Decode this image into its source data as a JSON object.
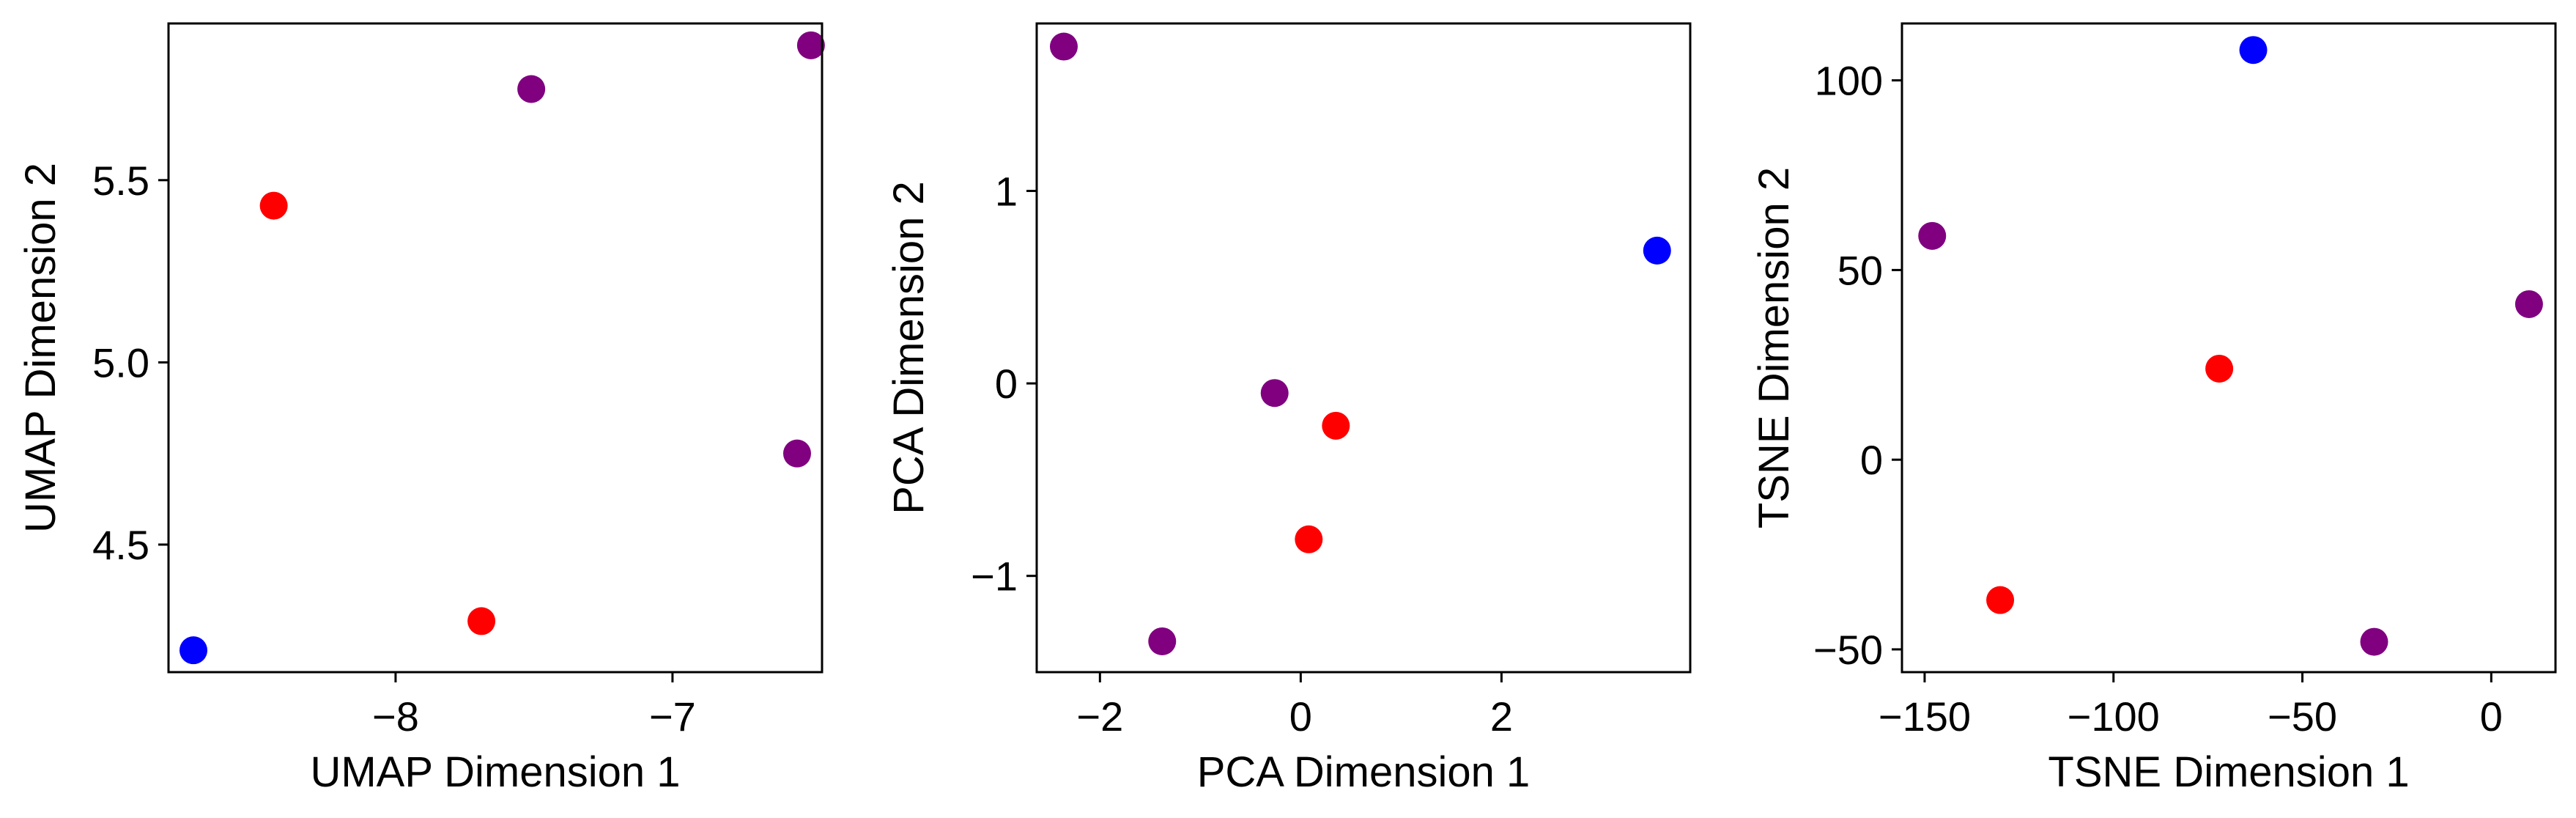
{
  "chart_data": [
    {
      "type": "scatter",
      "title": "",
      "xlabel": "UMAP Dimension 1",
      "ylabel": "UMAP Dimension 2",
      "xlim": [
        -8.82,
        -6.46
      ],
      "ylim": [
        4.15,
        5.93
      ],
      "xticks": [
        -8,
        -7
      ],
      "yticks": [
        4.5,
        5.0,
        5.5
      ],
      "xtick_labels": [
        "−8",
        "−7"
      ],
      "ytick_labels": [
        "4.5",
        "5.0",
        "5.5"
      ],
      "grid": false,
      "points": [
        {
          "x": -8.73,
          "y": 4.21,
          "color": "#0000ff"
        },
        {
          "x": -8.44,
          "y": 5.43,
          "color": "#ff0000"
        },
        {
          "x": -7.69,
          "y": 4.29,
          "color": "#ff0000"
        },
        {
          "x": -7.51,
          "y": 5.75,
          "color": "#800080"
        },
        {
          "x": -6.55,
          "y": 4.75,
          "color": "#800080"
        },
        {
          "x": -6.5,
          "y": 5.87,
          "color": "#800080"
        }
      ]
    },
    {
      "type": "scatter",
      "title": "",
      "xlabel": "PCA Dimension 1",
      "ylabel": "PCA Dimension 2",
      "xlim": [
        -2.63,
        3.88
      ],
      "ylim": [
        -1.5,
        1.87
      ],
      "xticks": [
        -2,
        0,
        2
      ],
      "yticks": [
        -1,
        0,
        1
      ],
      "xtick_labels": [
        "−2",
        "0",
        "2"
      ],
      "ytick_labels": [
        "−1",
        "0",
        "1"
      ],
      "grid": false,
      "points": [
        {
          "x": -2.36,
          "y": 1.75,
          "color": "#800080"
        },
        {
          "x": -1.38,
          "y": -1.34,
          "color": "#800080"
        },
        {
          "x": -0.26,
          "y": -0.05,
          "color": "#800080"
        },
        {
          "x": 0.35,
          "y": -0.22,
          "color": "#ff0000"
        },
        {
          "x": 0.08,
          "y": -0.81,
          "color": "#ff0000"
        },
        {
          "x": 3.55,
          "y": 0.69,
          "color": "#0000ff"
        }
      ]
    },
    {
      "type": "scatter",
      "title": "",
      "xlabel": "TSNE Dimension 1",
      "ylabel": "TSNE Dimension 2",
      "xlim": [
        -156,
        17
      ],
      "ylim": [
        -56,
        115
      ],
      "xticks": [
        -150,
        -100,
        -50,
        0
      ],
      "yticks": [
        -50,
        0,
        50,
        100
      ],
      "xtick_labels": [
        "−150",
        "−100",
        "−50",
        "0"
      ],
      "ytick_labels": [
        "−50",
        "0",
        "50",
        "100"
      ],
      "grid": false,
      "points": [
        {
          "x": -148,
          "y": 59,
          "color": "#800080"
        },
        {
          "x": -130,
          "y": -37,
          "color": "#ff0000"
        },
        {
          "x": -72,
          "y": 24,
          "color": "#ff0000"
        },
        {
          "x": -63,
          "y": 108,
          "color": "#0000ff"
        },
        {
          "x": -31,
          "y": -48,
          "color": "#800080"
        },
        {
          "x": 10,
          "y": 41,
          "color": "#800080"
        }
      ]
    }
  ]
}
